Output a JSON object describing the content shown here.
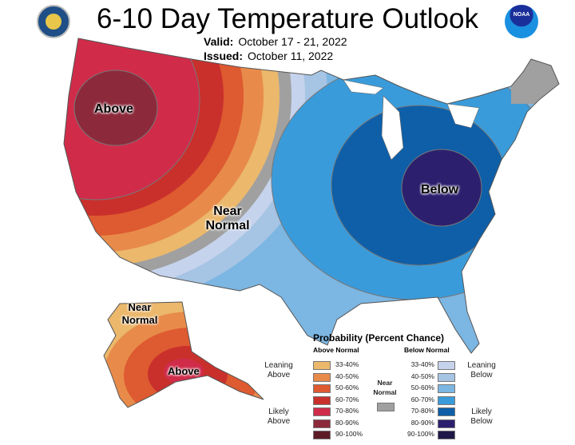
{
  "header": {
    "title": "6-10 Day Temperature Outlook",
    "valid_label": "Valid:",
    "valid_value": "October 17 - 21, 2022",
    "issued_label": "Issued:",
    "issued_value": "October 11, 2022",
    "noaa_logo_text": "NOAA"
  },
  "map_labels": {
    "above_west": "Above",
    "near_normal_central": "Near Normal",
    "below_east": "Below",
    "near_normal_alaska": "Near Normal",
    "above_alaska": "Above"
  },
  "legend": {
    "title": "Probability (Percent Chance)",
    "above_header": "Above Normal",
    "below_header": "Below Normal",
    "near_normal_label": "Near Normal",
    "near_normal_color": "#a0a0a0",
    "leaning_above": "Leaning Above",
    "likely_above": "Likely Above",
    "leaning_below": "Leaning Below",
    "likely_below": "Likely Below",
    "above": [
      {
        "range": "33-40%",
        "color": "#ebb86c"
      },
      {
        "range": "40-50%",
        "color": "#e88b4a"
      },
      {
        "range": "50-60%",
        "color": "#de5a30"
      },
      {
        "range": "60-70%",
        "color": "#c9302c"
      },
      {
        "range": "70-80%",
        "color": "#d02c4a"
      },
      {
        "range": "80-90%",
        "color": "#8c2a3c"
      },
      {
        "range": "90-100%",
        "color": "#5c1c26"
      }
    ],
    "below": [
      {
        "range": "33-40%",
        "color": "#c6d3ec"
      },
      {
        "range": "40-50%",
        "color": "#a6c4e4"
      },
      {
        "range": "50-60%",
        "color": "#7cb6e2"
      },
      {
        "range": "60-70%",
        "color": "#3a9bda"
      },
      {
        "range": "70-80%",
        "color": "#0e5fa8"
      },
      {
        "range": "80-90%",
        "color": "#2c206e"
      },
      {
        "range": "90-100%",
        "color": "#1e1848"
      }
    ]
  }
}
